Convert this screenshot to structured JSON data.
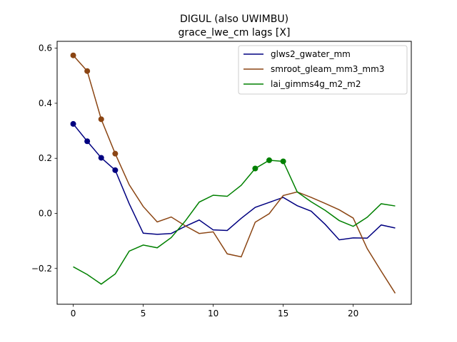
{
  "chart_data": {
    "type": "line",
    "title": "DIGUL (also UWIMBU)",
    "subtitle": "grace_lwe_cm lags [X]",
    "xlabel": "",
    "ylabel": "",
    "xlim": [
      -1.15,
      24.15
    ],
    "ylim": [
      -0.33,
      0.625
    ],
    "xticks": [
      0,
      5,
      10,
      15,
      20
    ],
    "yticks": [
      -0.2,
      0.0,
      0.2,
      0.4,
      0.6
    ],
    "ytick_labels": [
      "−0.2",
      "0.0",
      "0.2",
      "0.4",
      "0.6"
    ],
    "grid": false,
    "legend_position": "top-right",
    "series": [
      {
        "name": "glws2_gwater_mm",
        "color": "#000080",
        "x": [
          0,
          1,
          2,
          3,
          4,
          5,
          6,
          7,
          8,
          9,
          10,
          11,
          12,
          13,
          14,
          15,
          16,
          17,
          18,
          19,
          20,
          21,
          22,
          23
        ],
        "values": [
          0.325,
          0.262,
          0.202,
          0.157,
          0.035,
          -0.072,
          -0.076,
          -0.073,
          -0.047,
          -0.024,
          -0.06,
          -0.062,
          -0.018,
          0.022,
          0.04,
          0.058,
          0.028,
          0.008,
          -0.04,
          -0.096,
          -0.089,
          -0.09,
          -0.042,
          -0.053
        ],
        "markers_at": [
          0,
          1,
          2,
          3
        ]
      },
      {
        "name": "smroot_gleam_mm3_mm3",
        "color": "#8b4513",
        "x": [
          0,
          1,
          2,
          3,
          4,
          5,
          6,
          7,
          8,
          9,
          10,
          11,
          12,
          13,
          14,
          15,
          16,
          17,
          18,
          19,
          20,
          21,
          22,
          23
        ],
        "values": [
          0.574,
          0.517,
          0.342,
          0.217,
          0.104,
          0.025,
          -0.031,
          -0.013,
          -0.045,
          -0.073,
          -0.067,
          -0.147,
          -0.158,
          -0.032,
          -0.001,
          0.065,
          0.078,
          0.058,
          0.036,
          0.013,
          -0.017,
          -0.128,
          -0.21,
          -0.29
        ],
        "markers_at": [
          0,
          1,
          2,
          3
        ]
      },
      {
        "name": "lai_gimms4g_m2_m2",
        "color": "#008000",
        "x": [
          0,
          1,
          2,
          3,
          4,
          5,
          6,
          7,
          8,
          9,
          10,
          11,
          12,
          13,
          14,
          15,
          16,
          17,
          18,
          19,
          20,
          21,
          22,
          23
        ],
        "values": [
          -0.194,
          -0.222,
          -0.257,
          -0.22,
          -0.137,
          -0.115,
          -0.125,
          -0.088,
          -0.028,
          0.041,
          0.066,
          0.062,
          0.102,
          0.163,
          0.193,
          0.189,
          0.078,
          0.042,
          0.011,
          -0.026,
          -0.047,
          -0.014,
          0.035,
          0.027
        ],
        "markers_at": [
          13,
          14,
          15
        ]
      }
    ]
  }
}
